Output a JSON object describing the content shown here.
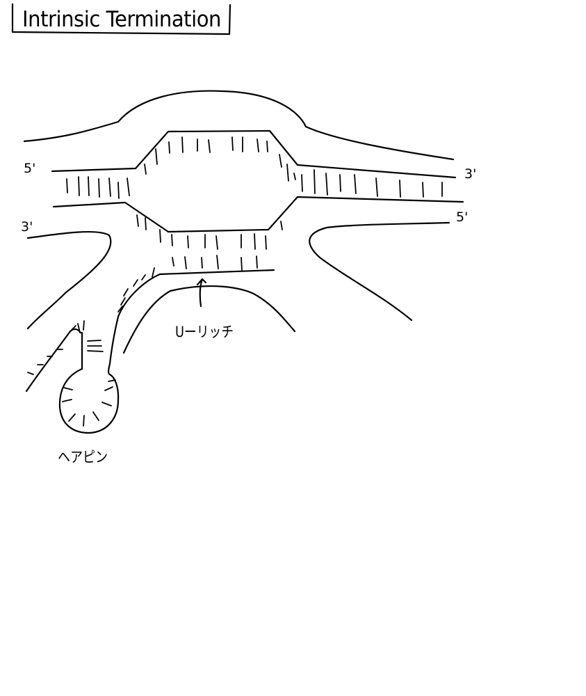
{
  "title": "Intrinsic Termination",
  "labels": {
    "u_rich": "Uーリッチ",
    "hairpin": "ヘアピン",
    "dna_top_left": "5'",
    "dna_bottom_left": "3'",
    "dna_top_right": "3'",
    "dna_bottom_right": "5'"
  }
}
